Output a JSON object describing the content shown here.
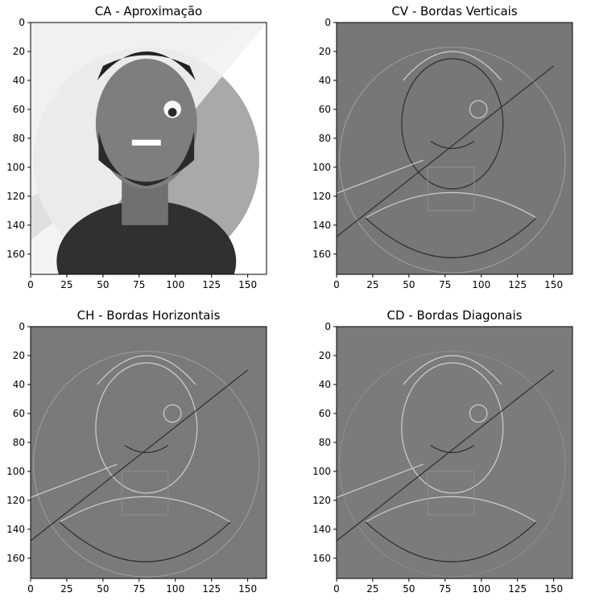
{
  "figure": {
    "background": "#ffffff"
  },
  "chart_data": [
    {
      "type": "image",
      "title": "CA - Aproximação",
      "subtitle": "",
      "colormap": "gray",
      "xlim": [
        0,
        163
      ],
      "ylim": [
        174,
        0
      ],
      "xticks": [
        0,
        25,
        50,
        75,
        100,
        125,
        150
      ],
      "yticks": [
        0,
        20,
        40,
        60,
        80,
        100,
        120,
        140,
        160
      ],
      "content": "approximation",
      "background_tone": "#ffffff",
      "circle_tone": "#a9a9a9",
      "shirt_tone": "#303030"
    },
    {
      "type": "image",
      "title": "CV - Bordas Verticais",
      "subtitle": "",
      "colormap": "gray",
      "xlim": [
        0,
        163
      ],
      "ylim": [
        174,
        0
      ],
      "xticks": [
        0,
        25,
        50,
        75,
        100,
        125,
        150
      ],
      "yticks": [
        0,
        20,
        40,
        60,
        80,
        100,
        120,
        140,
        160
      ],
      "content": "vertical_edges",
      "background_tone": "#777777"
    },
    {
      "type": "image",
      "title": "CH - Bordas Horizontais",
      "subtitle": "",
      "colormap": "gray",
      "xlim": [
        0,
        163
      ],
      "ylim": [
        174,
        0
      ],
      "xticks": [
        0,
        25,
        50,
        75,
        100,
        125,
        150
      ],
      "yticks": [
        0,
        20,
        40,
        60,
        80,
        100,
        120,
        140,
        160
      ],
      "content": "horizontal_edges",
      "background_tone": "#7a7a7a"
    },
    {
      "type": "image",
      "title": "CD - Bordas Diagonais",
      "subtitle": "",
      "colormap": "gray",
      "xlim": [
        0,
        163
      ],
      "ylim": [
        174,
        0
      ],
      "xticks": [
        0,
        25,
        50,
        75,
        100,
        125,
        150
      ],
      "yticks": [
        0,
        20,
        40,
        60,
        80,
        100,
        120,
        140,
        160
      ],
      "content": "diagonal_edges",
      "background_tone": "#7b7b7b"
    }
  ]
}
